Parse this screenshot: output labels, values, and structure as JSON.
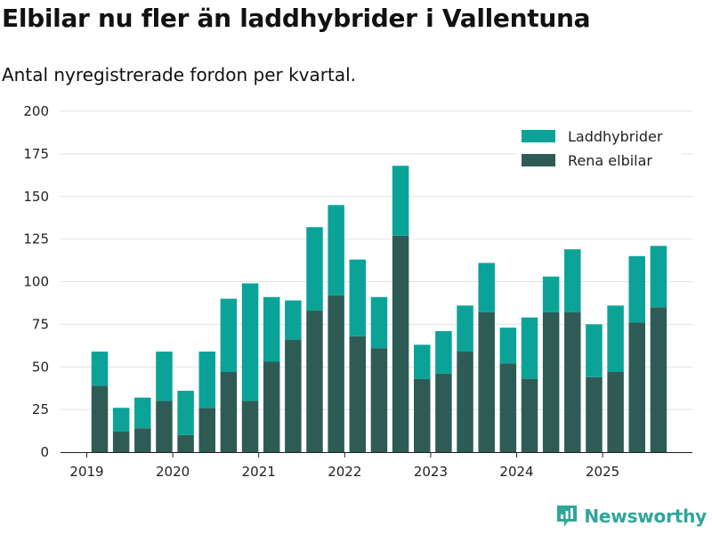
{
  "title": "Elbilar nu fler än laddhybrider i Vallentuna",
  "subtitle": "Antal nyregistrerade fordon per kvartal.",
  "brand": "Newsworthy",
  "colors": {
    "phev": "#0ba398",
    "bev": "#2e5c55",
    "grid": "#e2e2e2",
    "brand": "#2ea69a"
  },
  "chart_data": {
    "type": "bar",
    "stacked": true,
    "title": "Elbilar nu fler än laddhybrider i Vallentuna",
    "subtitle": "Antal nyregistrerade fordon per kvartal.",
    "xlabel": "",
    "ylabel": "",
    "ylim": [
      0,
      200
    ],
    "yticks": [
      0,
      25,
      50,
      75,
      100,
      125,
      150,
      175,
      200
    ],
    "xticks": [
      {
        "label": "2019",
        "at": 0
      },
      {
        "label": "2020",
        "at": 4
      },
      {
        "label": "2021",
        "at": 8
      },
      {
        "label": "2022",
        "at": 12
      },
      {
        "label": "2023",
        "at": 16
      },
      {
        "label": "2024",
        "at": 20
      },
      {
        "label": "2025",
        "at": 24
      }
    ],
    "legend_position": "top-right",
    "categories": [
      "2019 Q2",
      "2019 Q3",
      "2019 Q4",
      "2020 Q1",
      "2020 Q2",
      "2020 Q3",
      "2020 Q4",
      "2021 Q1",
      "2021 Q2",
      "2021 Q3",
      "2021 Q4",
      "2022 Q1",
      "2022 Q2",
      "2022 Q3",
      "2022 Q4",
      "2023 Q1",
      "2023 Q2",
      "2023 Q3",
      "2023 Q4",
      "2024 Q1",
      "2024 Q2",
      "2024 Q3",
      "2024 Q4",
      "2025 Q1",
      "2025 Q2",
      "2025 Q3",
      "2025 Q4"
    ],
    "series": [
      {
        "name": "Rena elbilar",
        "values": [
          39,
          12,
          14,
          30,
          10,
          26,
          47,
          30,
          53,
          66,
          83,
          92,
          68,
          61,
          127,
          43,
          46,
          59,
          82,
          52,
          43,
          82,
          82,
          44,
          47,
          76,
          85
        ]
      },
      {
        "name": "Laddhybrider",
        "values": [
          20,
          14,
          18,
          29,
          26,
          33,
          43,
          69,
          38,
          23,
          49,
          53,
          45,
          30,
          41,
          20,
          25,
          27,
          29,
          21,
          36,
          21,
          37,
          31,
          39,
          39,
          36
        ]
      }
    ],
    "legend": [
      "Laddhybrider",
      "Rena elbilar"
    ]
  }
}
